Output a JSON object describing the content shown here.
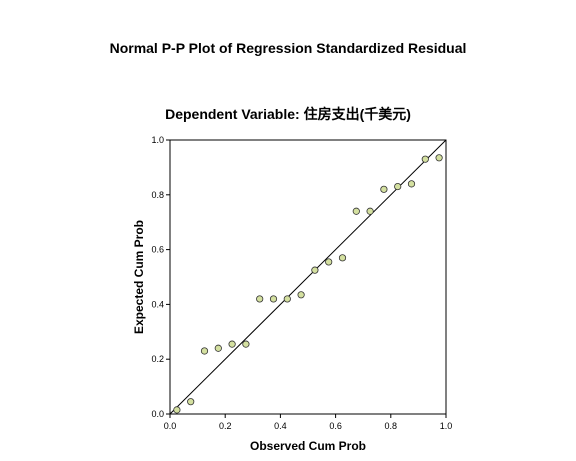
{
  "chart_data": {
    "type": "scatter",
    "title": "Normal P-P Plot of Regression Standardized Residual",
    "subtitle": "Dependent Variable: 住房支出(千美元)",
    "xlabel": "Observed Cum Prob",
    "ylabel": "Expected Cum Prob",
    "xlim": [
      0.0,
      1.0
    ],
    "ylim": [
      0.0,
      1.0
    ],
    "x_ticks": [
      "0.0",
      "0.2",
      "0.4",
      "0.6",
      "0.8",
      "1.0"
    ],
    "y_ticks": [
      "0.0",
      "0.2",
      "0.4",
      "0.6",
      "0.8",
      "1.0"
    ],
    "reference_line": [
      [
        0,
        0
      ],
      [
        1,
        1
      ]
    ],
    "grid": false,
    "point_color": "#d4e0a0",
    "points": [
      {
        "x": 0.025,
        "y": 0.015
      },
      {
        "x": 0.075,
        "y": 0.045
      },
      {
        "x": 0.125,
        "y": 0.23
      },
      {
        "x": 0.175,
        "y": 0.24
      },
      {
        "x": 0.225,
        "y": 0.255
      },
      {
        "x": 0.275,
        "y": 0.255
      },
      {
        "x": 0.325,
        "y": 0.42
      },
      {
        "x": 0.375,
        "y": 0.42
      },
      {
        "x": 0.425,
        "y": 0.42
      },
      {
        "x": 0.475,
        "y": 0.435
      },
      {
        "x": 0.525,
        "y": 0.525
      },
      {
        "x": 0.575,
        "y": 0.555
      },
      {
        "x": 0.625,
        "y": 0.57
      },
      {
        "x": 0.675,
        "y": 0.74
      },
      {
        "x": 0.725,
        "y": 0.74
      },
      {
        "x": 0.775,
        "y": 0.82
      },
      {
        "x": 0.825,
        "y": 0.83
      },
      {
        "x": 0.875,
        "y": 0.84
      },
      {
        "x": 0.925,
        "y": 0.93
      },
      {
        "x": 0.975,
        "y": 0.935
      }
    ]
  }
}
